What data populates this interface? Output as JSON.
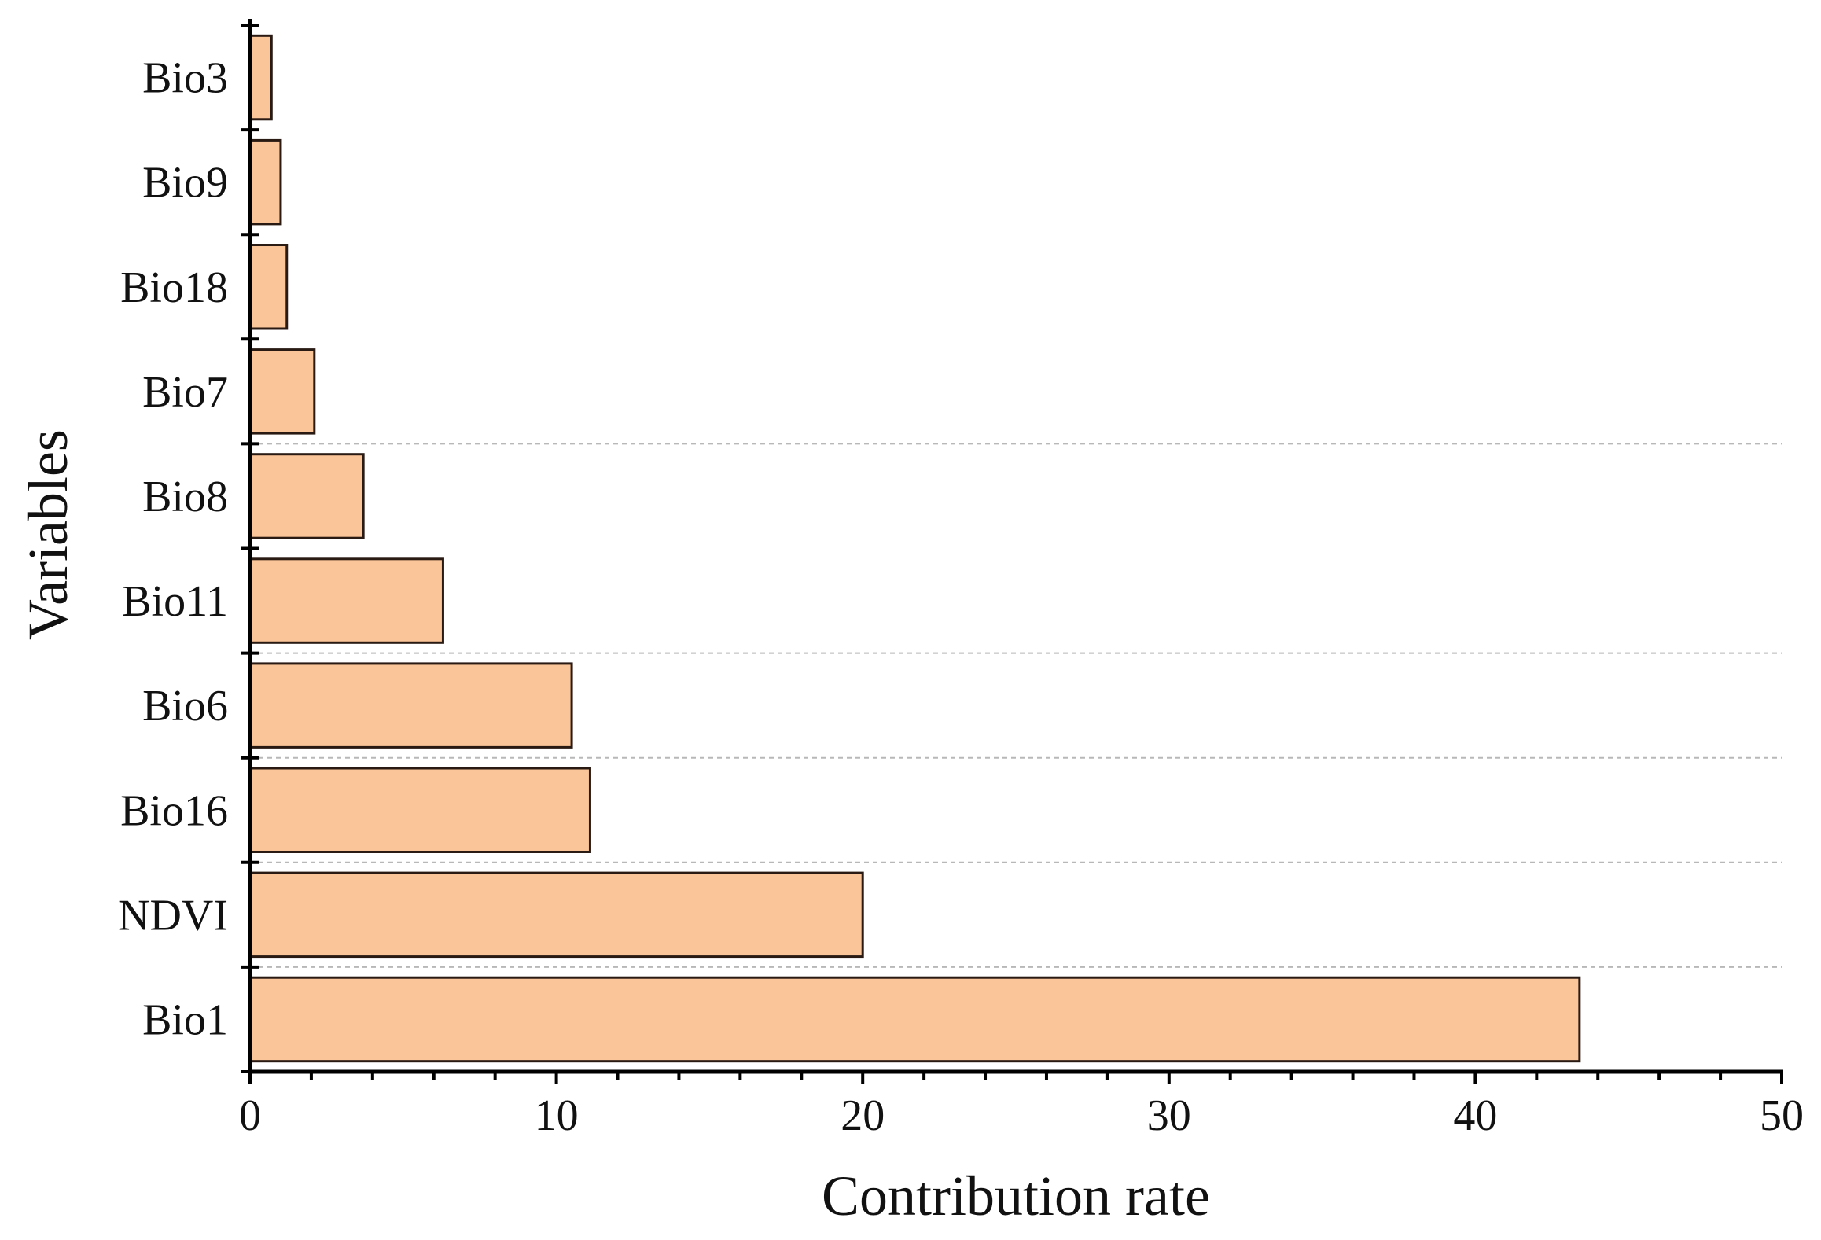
{
  "chart_data": {
    "type": "bar",
    "orientation": "horizontal",
    "categories": [
      "Bio3",
      "Bio9",
      "Bio18",
      "Bio7",
      "Bio8",
      "Bio11",
      "Bio6",
      "Bio16",
      "NDVI",
      "Bio1"
    ],
    "values": [
      0.7,
      1.0,
      1.2,
      2.1,
      3.7,
      6.3,
      10.5,
      11.1,
      20.0,
      43.4
    ],
    "xlabel": "Contribution rate",
    "ylabel": "Variables",
    "xlim": [
      0,
      50
    ],
    "xticks": [
      "0",
      "10",
      "20",
      "30",
      "40",
      "50"
    ],
    "grid": "dashed horizontal lines between some categories",
    "bar_color": "#FAC598",
    "edge_color": "#2a1a14"
  }
}
